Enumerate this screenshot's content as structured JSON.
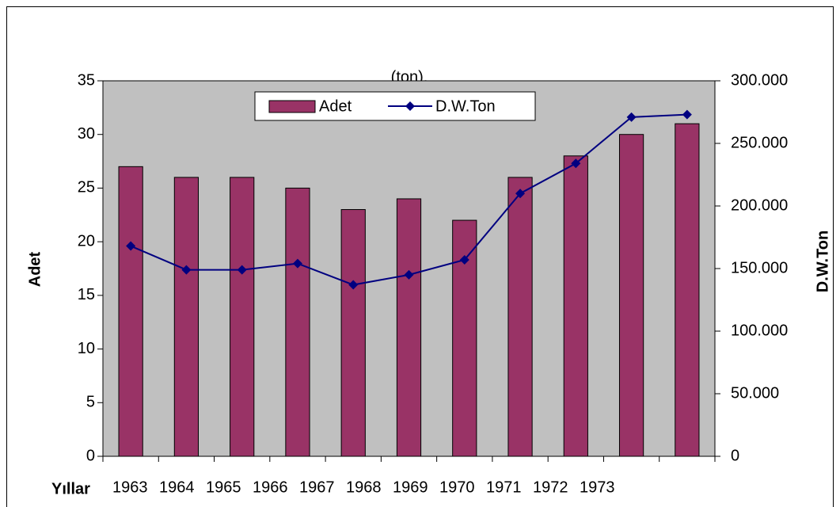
{
  "chart_data": {
    "type": "bar",
    "title": "(ton).",
    "x_label": "Yıllar",
    "y_label": "Adet",
    "y2_label": "D.W.Ton",
    "categories": [
      "1963",
      "1964",
      "1965",
      "1966",
      "1967",
      "1968",
      "1969",
      "1970",
      "1971",
      "1972",
      "1973"
    ],
    "series": [
      {
        "name": "Adet",
        "type": "bar",
        "color": "#993366",
        "values": [
          27,
          26,
          26,
          25,
          23,
          24,
          22,
          26,
          28,
          30,
          31
        ]
      },
      {
        "name": "D.W.Ton",
        "type": "line",
        "axis": "y2",
        "color": "#000080",
        "values": [
          168000,
          149000,
          149000,
          154000,
          137000,
          145000,
          157000,
          210000,
          234000,
          271000,
          273000
        ]
      }
    ],
    "ylim": [
      0,
      35
    ],
    "yticks": [
      0,
      5,
      10,
      15,
      20,
      25,
      30,
      35
    ],
    "y2lim": [
      0,
      300000
    ],
    "y2ticks": [
      0,
      {
        "value": 50000,
        "label": "50.000"
      },
      {
        "value": 100000,
        "label": "100.000"
      },
      {
        "value": 150000,
        "label": "150.000"
      },
      {
        "value": 200000,
        "label": "200.000"
      },
      {
        "value": 250000,
        "label": "250.000"
      },
      {
        "value": 300000,
        "label": "300.000"
      }
    ],
    "legend": "top",
    "plot_background": "#c0c0c0"
  }
}
